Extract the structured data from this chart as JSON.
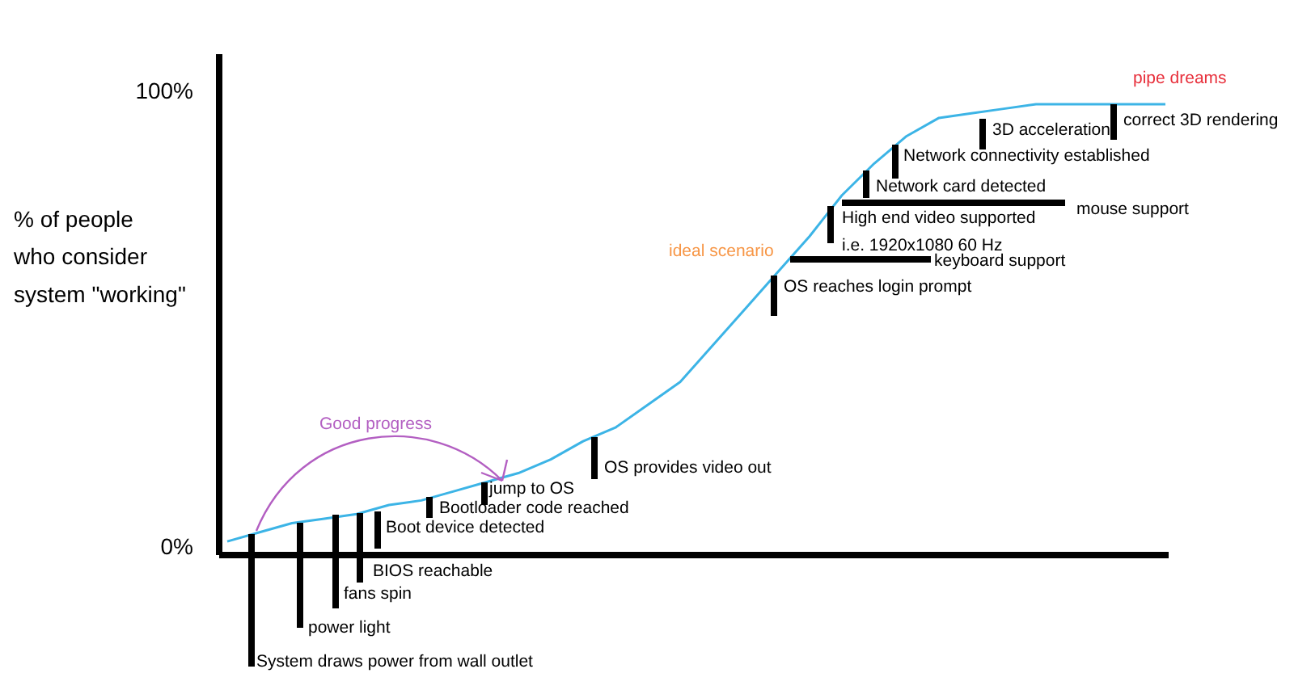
{
  "chart_data": {
    "type": "line",
    "ylabel": "% of people\nwho consider\nsystem \"working\"",
    "categories": [
      null,
      null,
      null,
      null,
      null,
      null,
      null,
      null,
      null,
      null,
      null,
      null,
      null,
      null,
      null,
      null,
      null,
      null,
      null,
      null,
      null,
      null,
      null,
      null,
      null,
      null,
      null,
      null,
      null,
      null
    ],
    "series": [
      {
        "color": "#3cb4e6",
        "values": [
          1,
          3,
          5,
          6,
          7,
          9,
          10,
          12,
          14,
          16,
          19,
          23,
          26,
          31,
          36,
          44,
          52,
          60,
          68,
          77,
          84,
          90,
          94,
          95,
          96,
          97,
          97,
          97,
          97,
          97
        ]
      }
    ],
    "ylim": [
      -2,
      108
    ],
    "yticks": [
      {
        "value": 0,
        "label": "0%"
      },
      {
        "value": 100,
        "label": "100%"
      }
    ],
    "tick_labels": "y",
    "annotations": [
      "System draws power from wall outlet",
      "power light",
      "fans spin",
      "BIOS reachable",
      "Boot device detected",
      "Bootloader code reached",
      "jump to OS",
      "OS provides video out",
      "OS reaches login prompt",
      "keyboard support",
      "High end video supported\ni.e. 1920x1080 60 Hz",
      "mouse support",
      "Network card detected",
      "Network connectivity established",
      "3D acceleration",
      "correct 3D rendering",
      "ideal scenario",
      "pipe dreams",
      "Good progress"
    ]
  }
}
